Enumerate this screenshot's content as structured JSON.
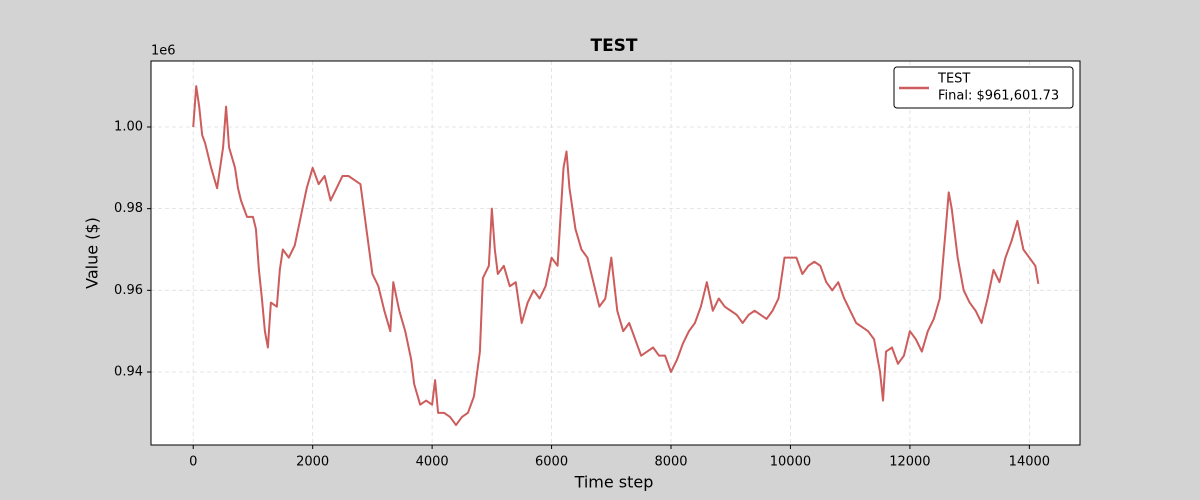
{
  "chart_data": {
    "type": "line",
    "title": "TEST",
    "x_label": "Time step",
    "y_label": "Value ($)",
    "y_offset_label": "1e6",
    "x": [
      0,
      50,
      100,
      150,
      200,
      300,
      400,
      500,
      550,
      600,
      700,
      750,
      800,
      900,
      1000,
      1050,
      1100,
      1150,
      1200,
      1250,
      1300,
      1400,
      1450,
      1500,
      1600,
      1700,
      1800,
      1900,
      2000,
      2100,
      2200,
      2300,
      2400,
      2500,
      2600,
      2700,
      2800,
      2900,
      3000,
      3100,
      3200,
      3300,
      3350,
      3450,
      3550,
      3650,
      3700,
      3800,
      3900,
      4000,
      4050,
      4100,
      4200,
      4300,
      4400,
      4500,
      4600,
      4700,
      4800,
      4850,
      4950,
      5000,
      5050,
      5100,
      5200,
      5300,
      5400,
      5500,
      5600,
      5700,
      5800,
      5900,
      6000,
      6100,
      6200,
      6250,
      6300,
      6400,
      6500,
      6600,
      6700,
      6800,
      6900,
      7000,
      7100,
      7200,
      7300,
      7400,
      7500,
      7600,
      7700,
      7800,
      7900,
      8000,
      8100,
      8200,
      8300,
      8400,
      8500,
      8600,
      8700,
      8800,
      8900,
      9000,
      9100,
      9200,
      9300,
      9400,
      9500,
      9600,
      9700,
      9800,
      9900,
      10000,
      10100,
      10200,
      10300,
      10400,
      10500,
      10600,
      10700,
      10800,
      10900,
      11000,
      11100,
      11200,
      11300,
      11400,
      11500,
      11550,
      11600,
      11700,
      11800,
      11900,
      12000,
      12100,
      12200,
      12300,
      12400,
      12500,
      12600,
      12650,
      12700,
      12800,
      12900,
      13000,
      13100,
      13200,
      13300,
      13400,
      13500,
      13600,
      13700,
      13800,
      13900,
      14000,
      14100,
      14150
    ],
    "series": [
      {
        "name": "TEST",
        "color": "#cd5c5c",
        "values": [
          1000000,
          1010000,
          1005000,
          998000,
          996000,
          990000,
          985000,
          995000,
          1005000,
          995000,
          990000,
          985000,
          982000,
          978000,
          978000,
          975000,
          965000,
          958000,
          950000,
          946000,
          957000,
          956000,
          965000,
          970000,
          968000,
          971000,
          978000,
          985000,
          990000,
          986000,
          988000,
          982000,
          985000,
          988000,
          988000,
          987000,
          986000,
          975000,
          964000,
          961000,
          955000,
          950000,
          962000,
          955000,
          950000,
          943000,
          937000,
          932000,
          933000,
          932000,
          938000,
          930000,
          930000,
          929000,
          927000,
          929000,
          930000,
          934000,
          945000,
          963000,
          966000,
          980000,
          970000,
          964000,
          966000,
          961000,
          962000,
          952000,
          957000,
          960000,
          958000,
          961000,
          968000,
          966000,
          990000,
          994000,
          985000,
          975000,
          970000,
          968000,
          962000,
          956000,
          958000,
          968000,
          955000,
          950000,
          952000,
          948000,
          944000,
          945000,
          946000,
          944000,
          944000,
          940000,
          943000,
          947000,
          950000,
          952000,
          956000,
          962000,
          955000,
          958000,
          956000,
          955000,
          954000,
          952000,
          954000,
          955000,
          954000,
          953000,
          955000,
          958000,
          968000,
          968000,
          968000,
          964000,
          966000,
          967000,
          966000,
          962000,
          960000,
          962000,
          958000,
          955000,
          952000,
          951000,
          950000,
          948000,
          940000,
          933000,
          945000,
          946000,
          942000,
          944000,
          950000,
          948000,
          945000,
          950000,
          953000,
          958000,
          975000,
          984000,
          980000,
          968000,
          960000,
          957000,
          955000,
          952000,
          958000,
          965000,
          962000,
          968000,
          972000,
          977000,
          970000,
          968000,
          966000,
          961601.73
        ]
      }
    ],
    "final_label": "Final: $961,601.73",
    "xlim": [
      -707,
      14848
    ],
    "xticks": [
      0,
      2000,
      4000,
      6000,
      8000,
      10000,
      12000,
      14000
    ],
    "ylim": [
      922120,
      1016160
    ],
    "yticks": [
      {
        "value": 940000,
        "label": "0.94"
      },
      {
        "value": 960000,
        "label": "0.96"
      },
      {
        "value": 980000,
        "label": "0.98"
      },
      {
        "value": 1000000,
        "label": "1.00"
      }
    ],
    "grid": true,
    "legend_position": "upper right"
  }
}
